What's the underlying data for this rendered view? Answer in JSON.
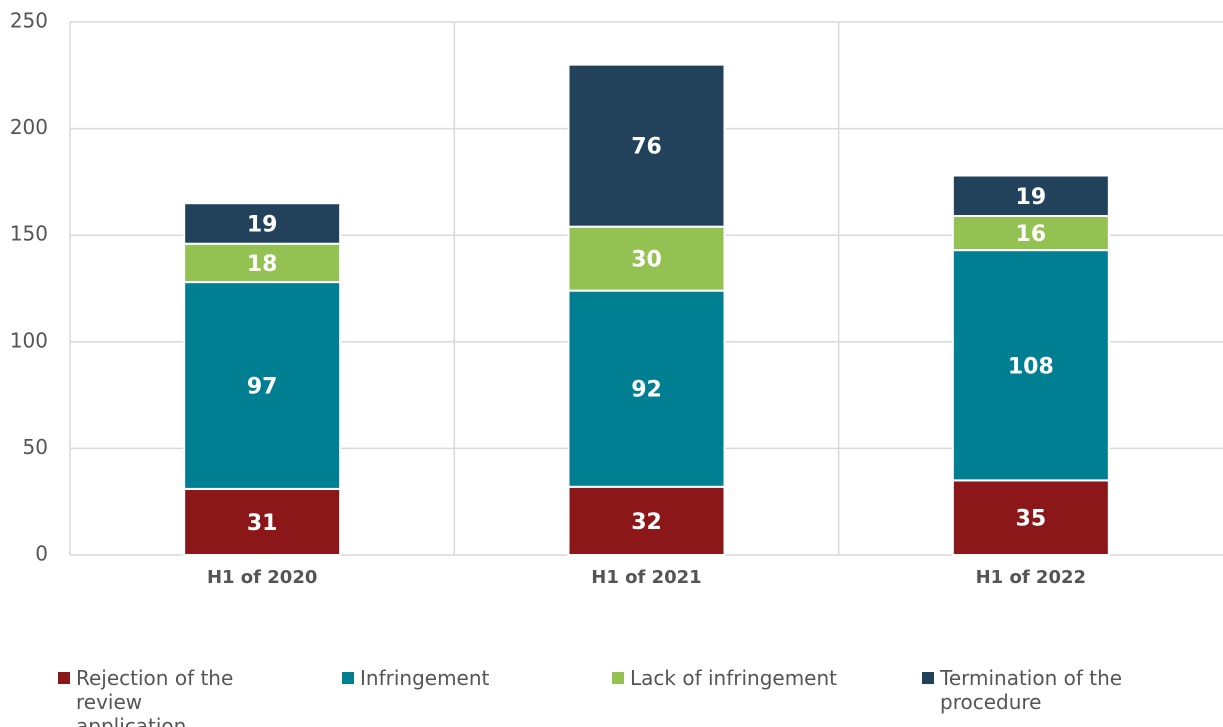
{
  "chart_data": {
    "type": "stacked_bar",
    "categories": [
      "H1 of 2020",
      "H1 of 2021",
      "H1 of 2022"
    ],
    "series": [
      {
        "name": "Rejection of the review application",
        "color": "#8c1718",
        "values": [
          31,
          32,
          35
        ]
      },
      {
        "name": "Infringement",
        "color": "#007f92",
        "values": [
          97,
          92,
          108
        ]
      },
      {
        "name": "Lack of infringement",
        "color": "#93c152",
        "values": [
          18,
          30,
          16
        ]
      },
      {
        "name": "Termination of the procedure",
        "color": "#22425b",
        "values": [
          19,
          76,
          19
        ]
      }
    ],
    "ylim": [
      0,
      250
    ],
    "yticks": [
      0,
      50,
      100,
      150,
      200,
      250
    ],
    "grid": true
  }
}
